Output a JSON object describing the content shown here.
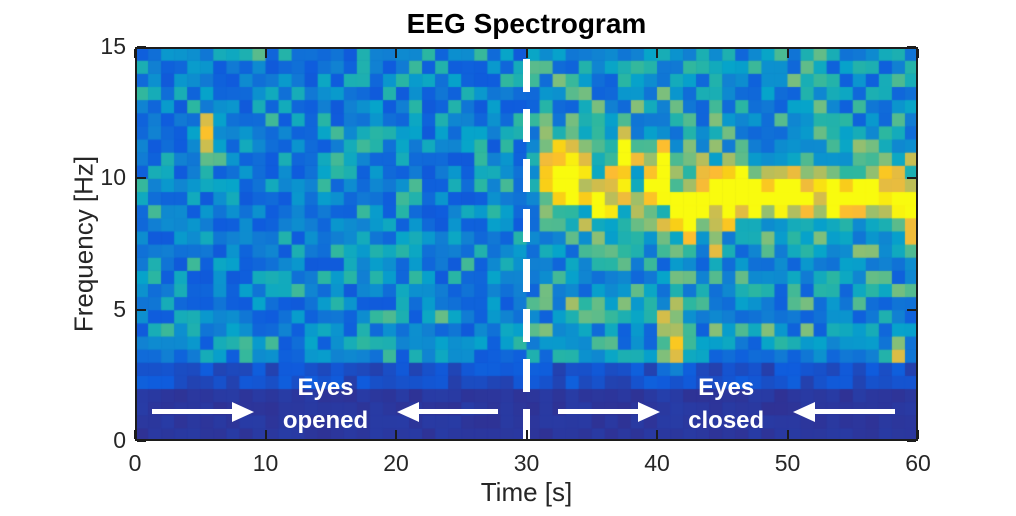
{
  "title": "EEG Spectrogram",
  "axes": {
    "x": {
      "label": "Time [s]",
      "range": [
        0,
        60
      ],
      "ticks": [
        0,
        10,
        20,
        30,
        40,
        50,
        60
      ]
    },
    "y": {
      "label": "Frequency [Hz]",
      "range": [
        0,
        15
      ],
      "ticks": [
        0,
        5,
        10,
        15
      ]
    }
  },
  "colors": {
    "background": "#ffffff",
    "axis_text": "#262626",
    "title_text": "#000000",
    "frame": "#1c1c1c",
    "annotation": "#ffffff",
    "event_line": "#ffffff"
  },
  "chart_data": {
    "type": "heatmap",
    "subtype": "EEG spectrogram",
    "x": {
      "unit": "s",
      "min": 0,
      "max": 60,
      "bins": 60
    },
    "y": {
      "unit": "Hz",
      "min": 0,
      "max": 15,
      "bins": 30
    },
    "grid": false,
    "colormap": {
      "name": "parula",
      "stops": [
        [
          0.0,
          "#352a87"
        ],
        [
          0.125,
          "#0f5cdd"
        ],
        [
          0.25,
          "#1181d2"
        ],
        [
          0.375,
          "#06a4ca"
        ],
        [
          0.5,
          "#2cb7a0"
        ],
        [
          0.625,
          "#7fbf7b"
        ],
        [
          0.75,
          "#c5be53"
        ],
        [
          0.875,
          "#fcbb33"
        ],
        [
          0.95,
          "#f9cf17"
        ],
        [
          1.0,
          "#f9fb0e"
        ]
      ]
    },
    "event_line": {
      "time": 30,
      "style": "dashed",
      "color": "#ffffff"
    },
    "regions": [
      {
        "name": "eyes_opened",
        "t_start": 0,
        "t_end": 30
      },
      {
        "name": "eyes_closed",
        "t_start": 30,
        "t_end": 60
      }
    ],
    "alpha_band": {
      "center_hz": 9.6,
      "sigma_hz": 1.0,
      "t_start": 31,
      "t_end": 60,
      "boost": 0.28,
      "flicker_min": 0.35
    },
    "noise": {
      "seed": 7,
      "delta_band": {
        "max_hz": 2.0,
        "level": 0.02,
        "jitter": 0.025
      },
      "theta_floor": {
        "max_hz": 3.0,
        "level": 0.05,
        "jitter": 0.09
      },
      "eyes_opened": {
        "level": 0.12,
        "jitter": 0.42,
        "gamma": 1.7,
        "speckle_p": 0.03,
        "speckle_add": 0.12
      },
      "eyes_closed": {
        "level": 0.14,
        "jitter": 0.5,
        "gamma": 1.5,
        "speckle_p": 0.05,
        "speckle_add": 0.1
      }
    },
    "features": [
      {
        "t": 5.5,
        "f": 11.5,
        "st": 0.6,
        "sf": 0.55,
        "amp": 0.7
      },
      {
        "t": 19.2,
        "f": 3.8,
        "st": 0.4,
        "sf": 0.4,
        "amp": 0.4
      },
      {
        "t": 32.8,
        "f": 10.1,
        "st": 1.2,
        "sf": 0.75,
        "amp": 0.92
      },
      {
        "t": 36.0,
        "f": 9.0,
        "st": 0.7,
        "sf": 0.5,
        "amp": 0.6
      },
      {
        "t": 37.5,
        "f": 10.8,
        "st": 0.5,
        "sf": 0.8,
        "amp": 0.55
      },
      {
        "t": 40.3,
        "f": 10.3,
        "st": 0.7,
        "sf": 0.7,
        "amp": 0.8
      },
      {
        "t": 42.3,
        "f": 8.7,
        "st": 0.9,
        "sf": 0.6,
        "amp": 0.85
      },
      {
        "t": 45.8,
        "f": 9.4,
        "st": 1.7,
        "sf": 0.65,
        "amp": 0.95
      },
      {
        "t": 50.3,
        "f": 9.5,
        "st": 1.5,
        "sf": 0.55,
        "amp": 0.9
      },
      {
        "t": 54.0,
        "f": 9.2,
        "st": 0.9,
        "sf": 0.5,
        "amp": 0.7
      },
      {
        "t": 56.5,
        "f": 9.4,
        "st": 1.2,
        "sf": 0.55,
        "amp": 0.88
      },
      {
        "t": 59.3,
        "f": 8.8,
        "st": 0.7,
        "sf": 0.8,
        "amp": 0.65
      },
      {
        "t": 33.2,
        "f": 4.9,
        "st": 0.4,
        "sf": 0.4,
        "amp": 0.4
      },
      {
        "t": 41.0,
        "f": 4.0,
        "st": 0.5,
        "sf": 0.9,
        "amp": 0.5
      },
      {
        "t": 44.6,
        "f": 7.2,
        "st": 0.4,
        "sf": 0.4,
        "amp": 0.45
      },
      {
        "t": 58.6,
        "f": 3.7,
        "st": 0.4,
        "sf": 0.4,
        "amp": 0.45
      }
    ]
  },
  "annotations": {
    "eyes_opened": {
      "line1": "Eyes",
      "line2": "opened",
      "t": 14.6,
      "f": 2.06
    },
    "eyes_closed": {
      "line1": "Eyes",
      "line2": "closed",
      "t": 45.3,
      "f": 2.06
    },
    "arrows": [
      {
        "name": "eyes-opened-arrow-left",
        "f": 1.1,
        "t_tail": 1.3,
        "t_tip": 9.1
      },
      {
        "name": "eyes-opened-arrow-right",
        "f": 1.1,
        "t_tail": 27.8,
        "t_tip": 20.1
      },
      {
        "name": "eyes-closed-arrow-left",
        "f": 1.1,
        "t_tail": 32.4,
        "t_tip": 40.2
      },
      {
        "name": "eyes-closed-arrow-right",
        "f": 1.1,
        "t_tail": 58.2,
        "t_tip": 50.4
      }
    ]
  }
}
